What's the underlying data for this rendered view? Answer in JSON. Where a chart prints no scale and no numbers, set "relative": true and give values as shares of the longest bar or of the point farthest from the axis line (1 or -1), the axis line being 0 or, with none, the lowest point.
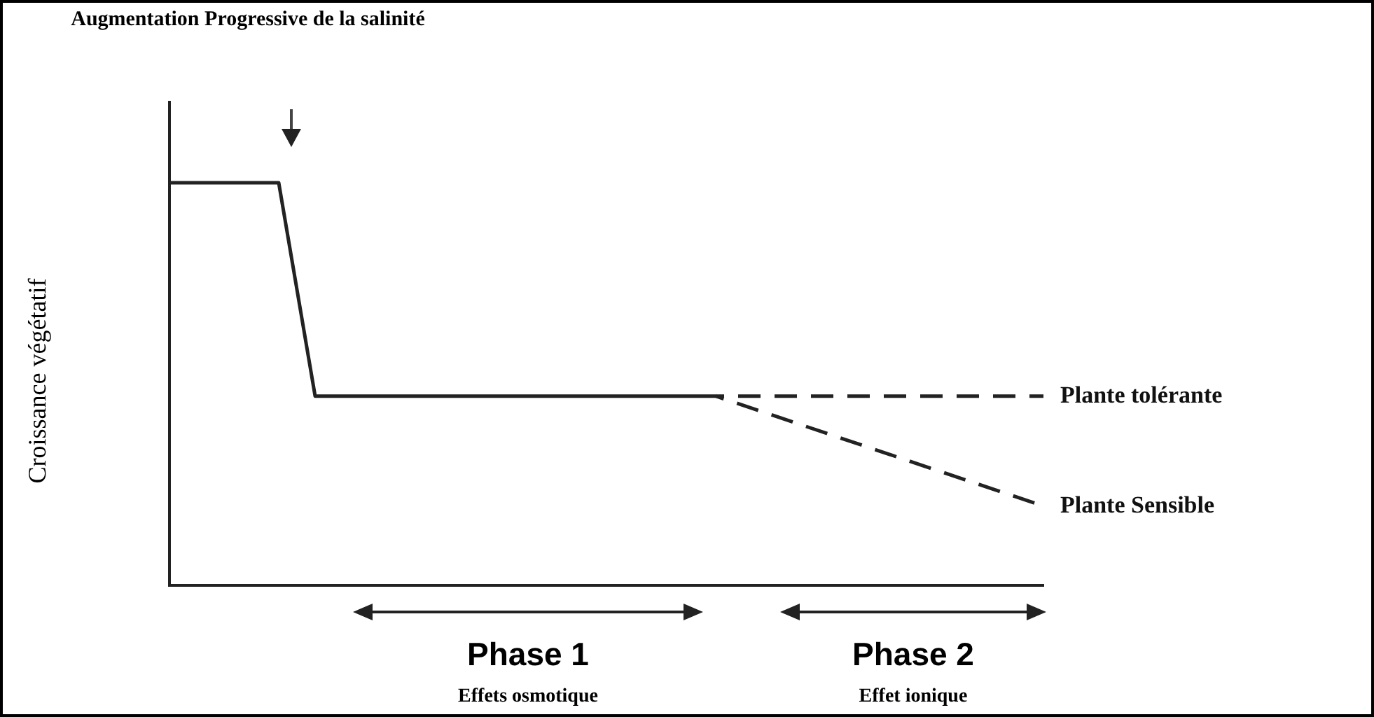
{
  "chart_data": {
    "type": "line",
    "title": "Augmentation Progressive de la salinité",
    "ylabel": "Croissance végétatif",
    "relative": true,
    "legend": false,
    "grid": false,
    "categories": [
      null,
      null,
      null,
      null,
      null,
      null,
      null,
      null,
      null,
      null,
      null,
      null,
      null,
      null,
      null,
      null,
      null,
      null,
      null,
      null,
      null,
      null,
      null,
      null,
      null
    ],
    "series": [
      {
        "color": "#222222",
        "line_style": "solid",
        "values": [
          1,
          null,
          null,
          1,
          0.47,
          null,
          null,
          null,
          null,
          null,
          null,
          null,
          null,
          null,
          null,
          0.47,
          null,
          null,
          null,
          null,
          null,
          null,
          null,
          null,
          null
        ]
      },
      {
        "name": "Plante tolérante",
        "color": "#222222",
        "line_style": "dashed",
        "values": [
          null,
          null,
          null,
          null,
          null,
          null,
          null,
          null,
          null,
          null,
          null,
          null,
          null,
          null,
          null,
          0.47,
          null,
          null,
          null,
          null,
          null,
          null,
          null,
          null,
          0.47
        ]
      },
      {
        "name": "Plante Sensible",
        "color": "#222222",
        "line_style": "dashed",
        "values": [
          null,
          null,
          null,
          null,
          null,
          null,
          null,
          null,
          null,
          null,
          null,
          null,
          null,
          null,
          null,
          0.47,
          null,
          null,
          null,
          null,
          null,
          null,
          null,
          null,
          0.197
        ]
      }
    ],
    "annotations": [
      "Phase 1",
      "Effets osmotique",
      "Phase 2",
      "Effet ionique"
    ]
  }
}
